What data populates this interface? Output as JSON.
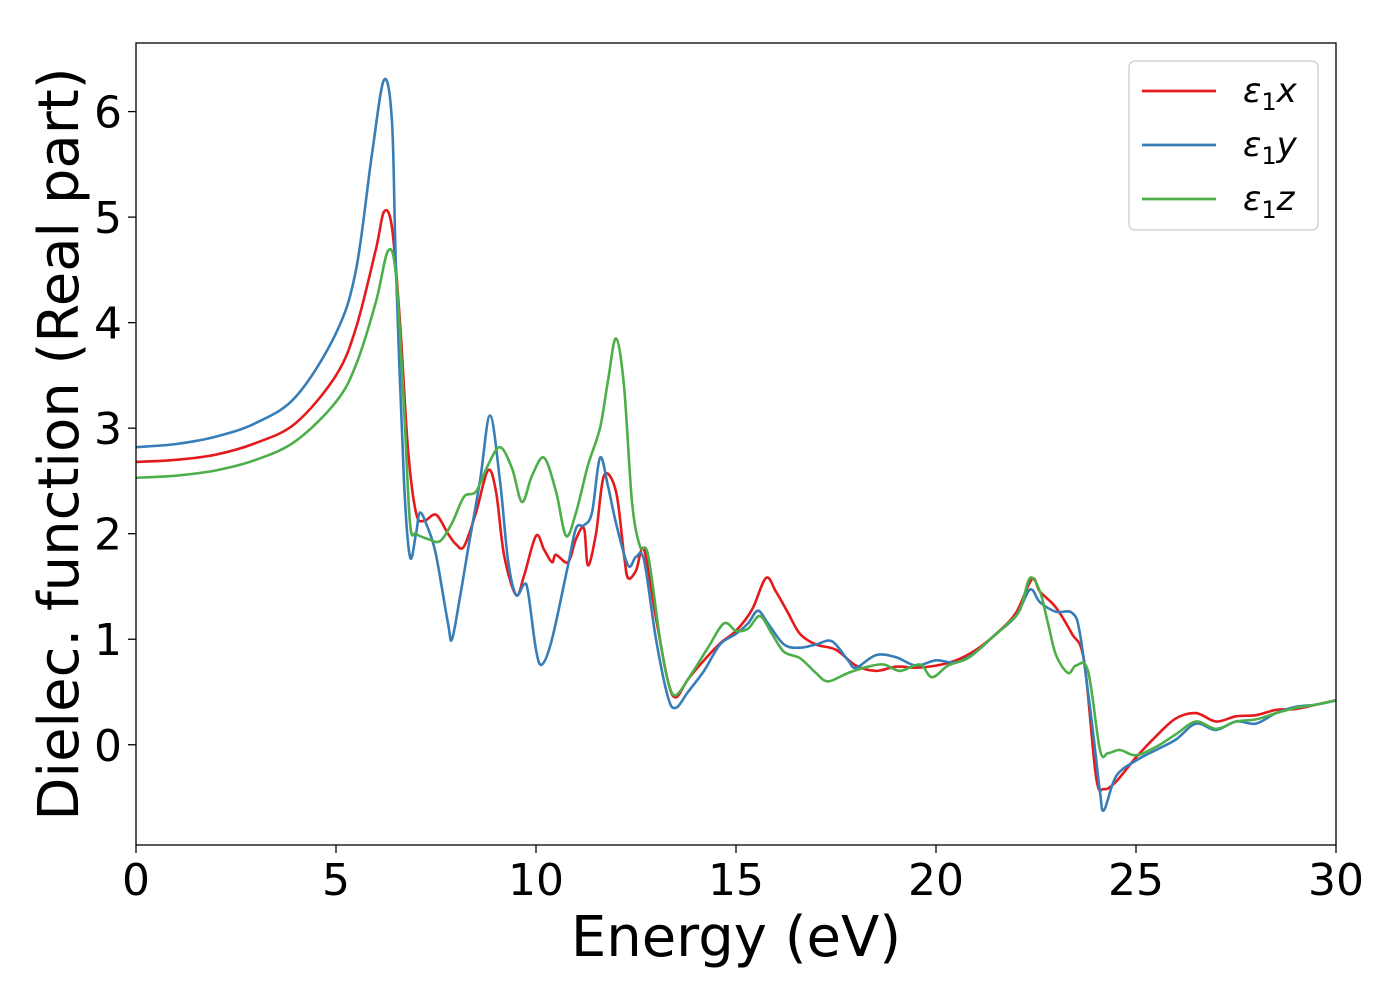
{
  "chart_data": {
    "type": "line",
    "title": "",
    "xlabel": "Energy (eV)",
    "ylabel": "Dielec. function (Real part)",
    "xlim": [
      0,
      30
    ],
    "ylim": [
      -0.95,
      6.65
    ],
    "xticks": [
      0,
      5,
      10,
      15,
      20,
      25,
      30
    ],
    "yticks": [
      0,
      1,
      2,
      3,
      4,
      5,
      6
    ],
    "grid": false,
    "legend_position": "top-right",
    "series": [
      {
        "name": "ε1x",
        "legend_base": "ε",
        "legend_sub": "1",
        "legend_var": "x",
        "color": "#e41a1c",
        "points": [
          [
            0,
            2.68
          ],
          [
            1,
            2.7
          ],
          [
            2,
            2.75
          ],
          [
            3,
            2.86
          ],
          [
            4,
            3.05
          ],
          [
            5,
            3.5
          ],
          [
            5.5,
            3.95
          ],
          [
            6,
            4.7
          ],
          [
            6.2,
            5.05
          ],
          [
            6.4,
            4.9
          ],
          [
            6.6,
            4.0
          ],
          [
            6.8,
            2.8
          ],
          [
            7.0,
            2.2
          ],
          [
            7.2,
            2.12
          ],
          [
            7.5,
            2.18
          ],
          [
            7.8,
            2.0
          ],
          [
            8.0,
            1.9
          ],
          [
            8.2,
            1.88
          ],
          [
            8.5,
            2.2
          ],
          [
            8.8,
            2.6
          ],
          [
            9.0,
            2.4
          ],
          [
            9.2,
            1.8
          ],
          [
            9.5,
            1.42
          ],
          [
            9.7,
            1.6
          ],
          [
            10.0,
            1.98
          ],
          [
            10.2,
            1.85
          ],
          [
            10.4,
            1.73
          ],
          [
            10.5,
            1.8
          ],
          [
            10.8,
            1.73
          ],
          [
            11.0,
            1.95
          ],
          [
            11.2,
            2.05
          ],
          [
            11.3,
            1.7
          ],
          [
            11.5,
            2.0
          ],
          [
            11.7,
            2.55
          ],
          [
            12.0,
            2.4
          ],
          [
            12.2,
            1.8
          ],
          [
            12.3,
            1.58
          ],
          [
            12.5,
            1.65
          ],
          [
            12.7,
            1.85
          ],
          [
            13.0,
            1.2
          ],
          [
            13.3,
            0.6
          ],
          [
            13.5,
            0.45
          ],
          [
            13.8,
            0.62
          ],
          [
            14.2,
            0.8
          ],
          [
            14.6,
            0.96
          ],
          [
            15.0,
            1.08
          ],
          [
            15.4,
            1.28
          ],
          [
            15.75,
            1.58
          ],
          [
            16.0,
            1.45
          ],
          [
            16.3,
            1.25
          ],
          [
            16.6,
            1.05
          ],
          [
            17.0,
            0.95
          ],
          [
            17.5,
            0.9
          ],
          [
            18.0,
            0.75
          ],
          [
            18.5,
            0.7
          ],
          [
            19.0,
            0.74
          ],
          [
            19.5,
            0.73
          ],
          [
            20.0,
            0.75
          ],
          [
            20.5,
            0.8
          ],
          [
            21.0,
            0.9
          ],
          [
            21.5,
            1.05
          ],
          [
            22.0,
            1.25
          ],
          [
            22.4,
            1.57
          ],
          [
            22.6,
            1.45
          ],
          [
            23.0,
            1.3
          ],
          [
            23.4,
            1.05
          ],
          [
            23.7,
            0.8
          ],
          [
            24.0,
            -0.3
          ],
          [
            24.2,
            -0.42
          ],
          [
            24.5,
            -0.35
          ],
          [
            25.0,
            -0.12
          ],
          [
            25.5,
            0.08
          ],
          [
            26.0,
            0.25
          ],
          [
            26.5,
            0.3
          ],
          [
            27.0,
            0.22
          ],
          [
            27.5,
            0.27
          ],
          [
            28.0,
            0.28
          ],
          [
            28.5,
            0.33
          ],
          [
            29.0,
            0.34
          ],
          [
            29.5,
            0.38
          ],
          [
            30.0,
            0.42
          ]
        ]
      },
      {
        "name": "ε1y",
        "legend_base": "ε",
        "legend_sub": "1",
        "legend_var": "y",
        "color": "#377eb8",
        "points": [
          [
            0,
            2.82
          ],
          [
            1,
            2.85
          ],
          [
            2,
            2.92
          ],
          [
            3,
            3.05
          ],
          [
            4,
            3.3
          ],
          [
            5,
            3.9
          ],
          [
            5.5,
            4.5
          ],
          [
            5.9,
            5.6
          ],
          [
            6.2,
            6.3
          ],
          [
            6.4,
            5.9
          ],
          [
            6.5,
            4.5
          ],
          [
            6.7,
            2.5
          ],
          [
            6.85,
            1.78
          ],
          [
            7.0,
            2.0
          ],
          [
            7.1,
            2.2
          ],
          [
            7.3,
            2.05
          ],
          [
            7.5,
            1.8
          ],
          [
            7.8,
            1.15
          ],
          [
            7.9,
            1.0
          ],
          [
            8.1,
            1.4
          ],
          [
            8.3,
            1.85
          ],
          [
            8.6,
            2.5
          ],
          [
            8.85,
            3.12
          ],
          [
            9.1,
            2.5
          ],
          [
            9.3,
            1.75
          ],
          [
            9.5,
            1.42
          ],
          [
            9.7,
            1.52
          ],
          [
            9.8,
            1.45
          ],
          [
            10.0,
            0.9
          ],
          [
            10.15,
            0.76
          ],
          [
            10.4,
            1.0
          ],
          [
            10.8,
            1.7
          ],
          [
            11.0,
            2.05
          ],
          [
            11.2,
            2.08
          ],
          [
            11.4,
            2.2
          ],
          [
            11.6,
            2.72
          ],
          [
            11.8,
            2.45
          ],
          [
            12.0,
            2.1
          ],
          [
            12.3,
            1.7
          ],
          [
            12.5,
            1.78
          ],
          [
            12.7,
            1.75
          ],
          [
            13.0,
            1.0
          ],
          [
            13.3,
            0.45
          ],
          [
            13.5,
            0.35
          ],
          [
            13.8,
            0.5
          ],
          [
            14.2,
            0.7
          ],
          [
            14.6,
            0.95
          ],
          [
            15.0,
            1.05
          ],
          [
            15.3,
            1.15
          ],
          [
            15.55,
            1.27
          ],
          [
            15.8,
            1.15
          ],
          [
            16.2,
            0.95
          ],
          [
            16.6,
            0.92
          ],
          [
            17.0,
            0.95
          ],
          [
            17.4,
            0.98
          ],
          [
            17.8,
            0.8
          ],
          [
            18.0,
            0.73
          ],
          [
            18.5,
            0.85
          ],
          [
            19.0,
            0.83
          ],
          [
            19.5,
            0.75
          ],
          [
            20.0,
            0.8
          ],
          [
            20.5,
            0.78
          ],
          [
            21.0,
            0.88
          ],
          [
            21.5,
            1.05
          ],
          [
            22.0,
            1.22
          ],
          [
            22.35,
            1.47
          ],
          [
            22.6,
            1.35
          ],
          [
            23.0,
            1.26
          ],
          [
            23.4,
            1.25
          ],
          [
            23.6,
            1.05
          ],
          [
            23.9,
            0.2
          ],
          [
            24.1,
            -0.45
          ],
          [
            24.2,
            -0.62
          ],
          [
            24.5,
            -0.3
          ],
          [
            25.0,
            -0.15
          ],
          [
            25.5,
            -0.05
          ],
          [
            26.0,
            0.05
          ],
          [
            26.5,
            0.2
          ],
          [
            27.0,
            0.14
          ],
          [
            27.5,
            0.22
          ],
          [
            28.0,
            0.2
          ],
          [
            28.5,
            0.3
          ],
          [
            29.0,
            0.36
          ],
          [
            29.5,
            0.38
          ],
          [
            30.0,
            0.42
          ]
        ]
      },
      {
        "name": "ε1z",
        "legend_base": "ε",
        "legend_sub": "1",
        "legend_var": "z",
        "color": "#4daf4a",
        "points": [
          [
            0,
            2.53
          ],
          [
            1,
            2.55
          ],
          [
            2,
            2.6
          ],
          [
            3,
            2.7
          ],
          [
            4,
            2.88
          ],
          [
            5,
            3.25
          ],
          [
            5.5,
            3.6
          ],
          [
            6.0,
            4.2
          ],
          [
            6.3,
            4.68
          ],
          [
            6.5,
            4.45
          ],
          [
            6.7,
            3.2
          ],
          [
            6.85,
            2.1
          ],
          [
            7.0,
            2.0
          ],
          [
            7.3,
            1.95
          ],
          [
            7.6,
            1.93
          ],
          [
            7.9,
            2.1
          ],
          [
            8.2,
            2.35
          ],
          [
            8.5,
            2.4
          ],
          [
            8.8,
            2.65
          ],
          [
            9.1,
            2.82
          ],
          [
            9.4,
            2.62
          ],
          [
            9.65,
            2.3
          ],
          [
            9.9,
            2.55
          ],
          [
            10.2,
            2.72
          ],
          [
            10.5,
            2.4
          ],
          [
            10.75,
            1.98
          ],
          [
            11.0,
            2.2
          ],
          [
            11.3,
            2.65
          ],
          [
            11.6,
            3.0
          ],
          [
            11.8,
            3.45
          ],
          [
            12.0,
            3.85
          ],
          [
            12.2,
            3.4
          ],
          [
            12.4,
            2.3
          ],
          [
            12.6,
            1.88
          ],
          [
            12.8,
            1.8
          ],
          [
            13.1,
            1.0
          ],
          [
            13.3,
            0.6
          ],
          [
            13.5,
            0.47
          ],
          [
            13.9,
            0.68
          ],
          [
            14.3,
            0.92
          ],
          [
            14.7,
            1.15
          ],
          [
            15.0,
            1.08
          ],
          [
            15.3,
            1.1
          ],
          [
            15.6,
            1.22
          ],
          [
            15.9,
            1.05
          ],
          [
            16.2,
            0.88
          ],
          [
            16.6,
            0.82
          ],
          [
            17.0,
            0.68
          ],
          [
            17.3,
            0.6
          ],
          [
            17.8,
            0.68
          ],
          [
            18.3,
            0.74
          ],
          [
            18.7,
            0.76
          ],
          [
            19.1,
            0.7
          ],
          [
            19.6,
            0.76
          ],
          [
            19.9,
            0.64
          ],
          [
            20.3,
            0.75
          ],
          [
            20.8,
            0.82
          ],
          [
            21.3,
            0.98
          ],
          [
            21.8,
            1.15
          ],
          [
            22.1,
            1.28
          ],
          [
            22.35,
            1.58
          ],
          [
            22.6,
            1.45
          ],
          [
            22.8,
            1.15
          ],
          [
            23.0,
            0.85
          ],
          [
            23.3,
            0.68
          ],
          [
            23.5,
            0.75
          ],
          [
            23.8,
            0.7
          ],
          [
            24.1,
            -0.05
          ],
          [
            24.3,
            -0.08
          ],
          [
            24.6,
            -0.05
          ],
          [
            25.0,
            -0.1
          ],
          [
            25.5,
            -0.02
          ],
          [
            26.0,
            0.1
          ],
          [
            26.5,
            0.22
          ],
          [
            27.0,
            0.15
          ],
          [
            27.5,
            0.22
          ],
          [
            28.0,
            0.24
          ],
          [
            28.5,
            0.3
          ],
          [
            29.0,
            0.35
          ],
          [
            29.5,
            0.38
          ],
          [
            30.0,
            0.42
          ]
        ]
      }
    ]
  }
}
